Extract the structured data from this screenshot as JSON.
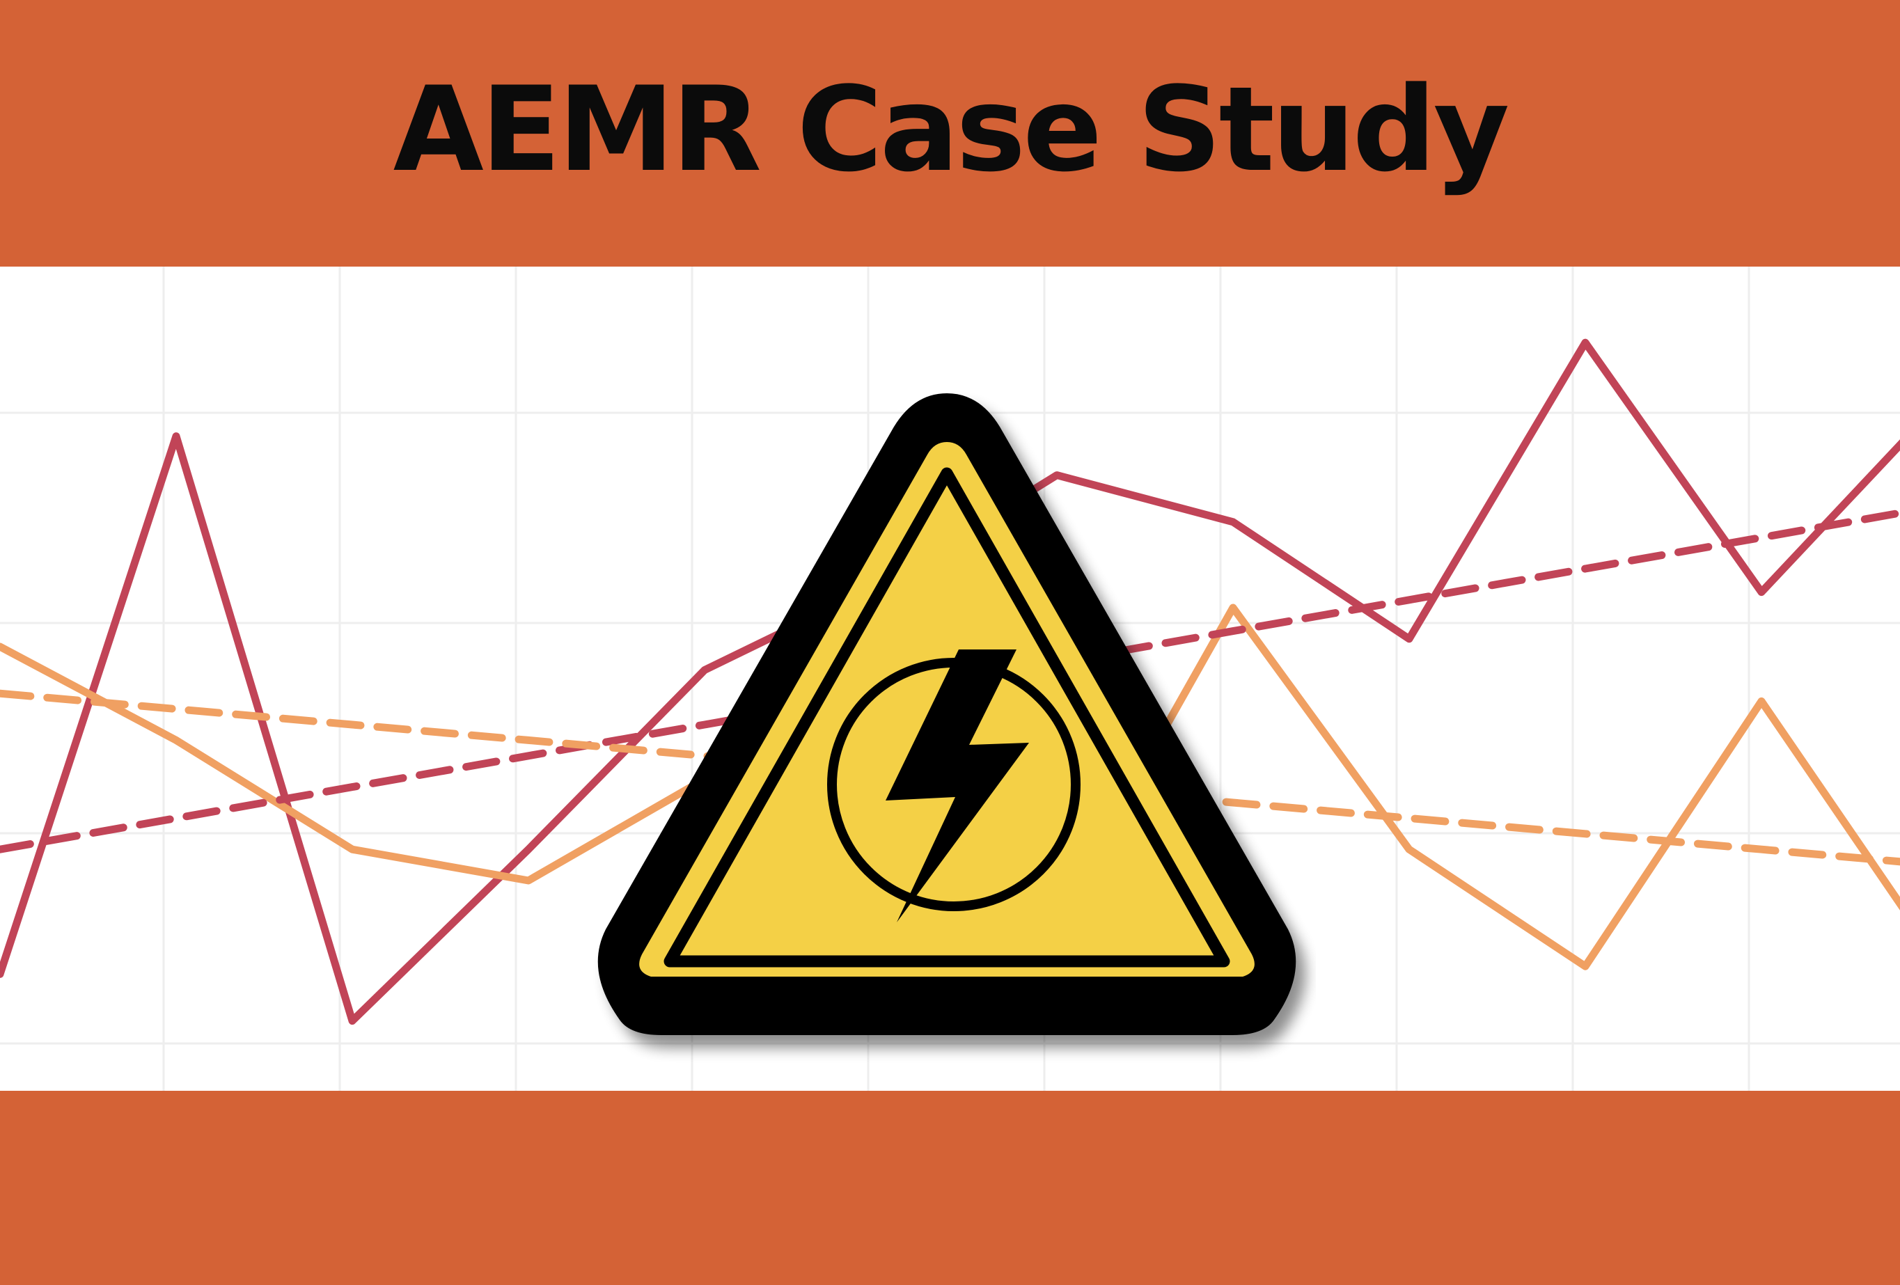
{
  "title": "AEMR Case Study",
  "colors": {
    "band": "#D46236",
    "title_text": "#0B0B0B",
    "grid": "#EEEEEE",
    "series_dark": "#C14457",
    "series_light": "#F0A062",
    "sign_yellow": "#F4D046",
    "sign_black": "#000000"
  },
  "icons": {
    "warning_sign": "high-voltage-warning-icon"
  },
  "chart_data": {
    "type": "line",
    "x": [
      0,
      1,
      2,
      3,
      4,
      5,
      6,
      7,
      8,
      9,
      10,
      11
    ],
    "ylim": [
      0,
      100
    ],
    "grid": true,
    "series": [
      {
        "values": [
          13,
          82,
          7,
          29,
          52,
          63,
          77,
          71,
          56,
          94,
          62,
          86
        ]
      },
      {
        "values": [
          55,
          43,
          29,
          25,
          38,
          40,
          20,
          60,
          29,
          14,
          48,
          15
        ]
      },
      {
        "values": [
          29,
          33,
          37,
          41,
          45,
          49,
          53,
          57,
          61,
          65,
          69,
          73
        ],
        "dashed": true
      },
      {
        "values": [
          49,
          47,
          45,
          43,
          41,
          39,
          37,
          35,
          33,
          31,
          29,
          27
        ],
        "dashed": true
      }
    ]
  }
}
